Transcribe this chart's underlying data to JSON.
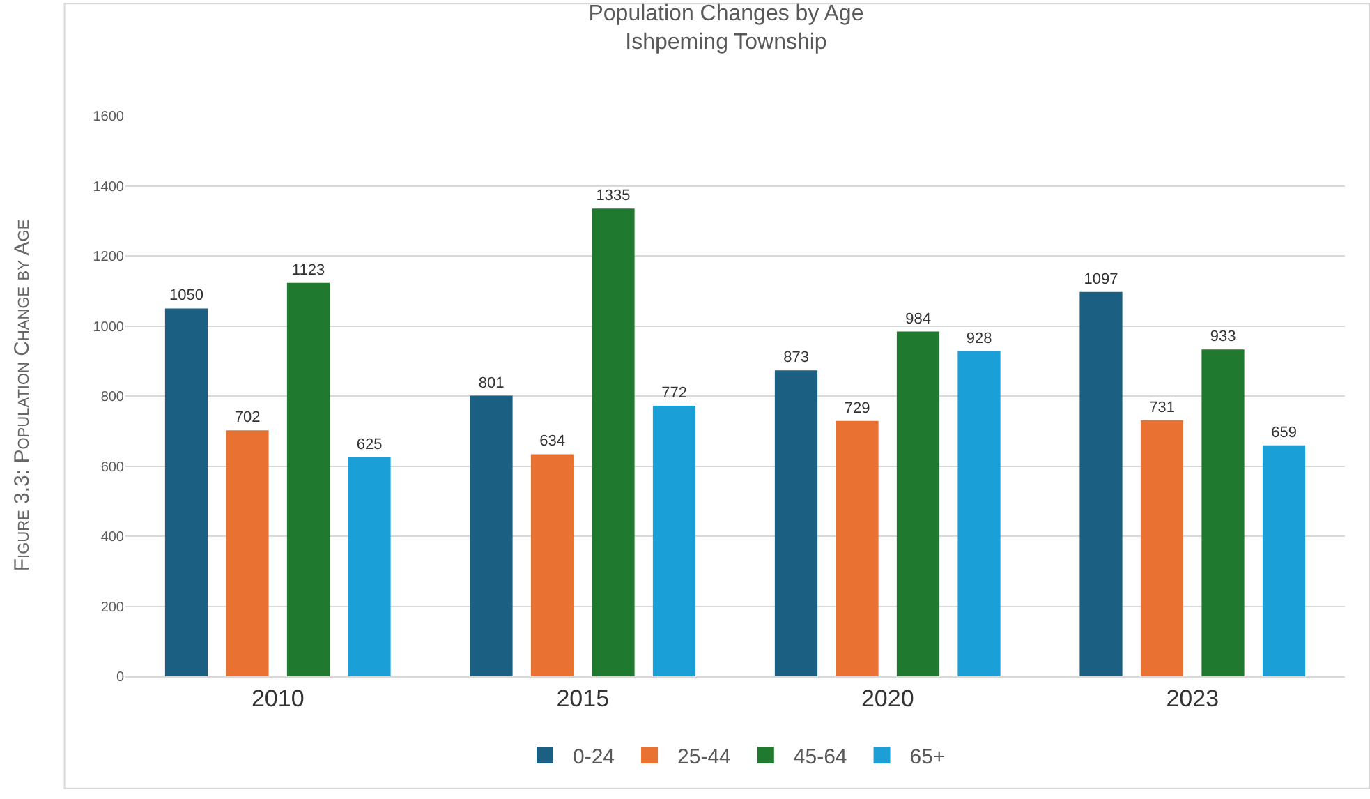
{
  "chart_data": {
    "type": "bar",
    "title": "Population Changes by Age",
    "subtitle": "Ishpeming Township",
    "categories": [
      "2010",
      "2015",
      "2020",
      "2023"
    ],
    "series": [
      {
        "name": "0-24",
        "color": "#1b5f82",
        "values": [
          1050,
          801,
          873,
          1097
        ]
      },
      {
        "name": "25-44",
        "color": "#e97132",
        "values": [
          702,
          634,
          729,
          731
        ]
      },
      {
        "name": "45-64",
        "color": "#1f7a2f",
        "values": [
          1123,
          1335,
          984,
          933
        ]
      },
      {
        "name": "65+",
        "color": "#1aa0d6",
        "values": [
          625,
          772,
          928,
          659
        ]
      }
    ],
    "ylim": [
      0,
      1600
    ],
    "yticks": [
      0,
      200,
      400,
      600,
      800,
      1000,
      1200,
      1400,
      1600
    ],
    "grid": "y",
    "legend": "bottom",
    "data_labels": true,
    "annotations": [
      "Figure 3.3: Population Change by Age"
    ]
  }
}
